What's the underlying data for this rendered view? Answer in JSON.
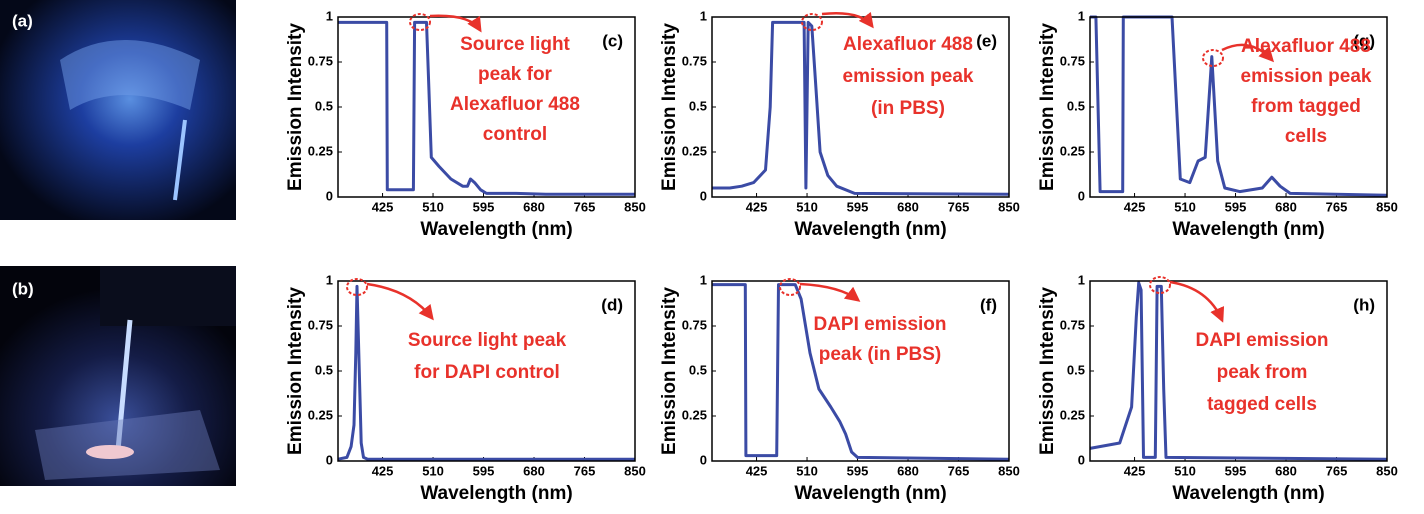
{
  "photos": [
    {
      "label": "(a)"
    },
    {
      "label": "(b)"
    }
  ],
  "chart_data": [
    {
      "type": "line",
      "panel_label": "(c)",
      "annotation": [
        "Source light",
        "peak for",
        "Alexafluor 488",
        "control"
      ],
      "xlabel": "Wavelength (nm)",
      "ylabel": "Emission Intensity",
      "xlim": [
        350,
        850
      ],
      "ylim": [
        0,
        1
      ],
      "xticks": [
        425,
        510,
        595,
        680,
        765,
        850
      ],
      "yticks": [
        0,
        0.25,
        0.5,
        0.75,
        1
      ],
      "series": [
        {
          "color": "#3b4ba5",
          "x": [
            350,
            432,
            433,
            477,
            479,
            499,
            503,
            507,
            520,
            540,
            560,
            568,
            573,
            580,
            590,
            600,
            650,
            700,
            850
          ],
          "values": [
            0.97,
            0.97,
            0.04,
            0.04,
            0.97,
            0.97,
            0.6,
            0.22,
            0.17,
            0.1,
            0.06,
            0.06,
            0.1,
            0.08,
            0.04,
            0.02,
            0.02,
            0.015,
            0.015
          ]
        }
      ]
    },
    {
      "type": "line",
      "panel_label": "(e)",
      "annotation": [
        "Alexafluor 488",
        "emission peak",
        "(in PBS)"
      ],
      "xlabel": "Wavelength (nm)",
      "ylabel": "Emission Intensity",
      "xlim": [
        350,
        850
      ],
      "ylim": [
        0,
        1
      ],
      "xticks": [
        425,
        510,
        595,
        680,
        765,
        850
      ],
      "yticks": [
        0,
        0.25,
        0.5,
        0.75,
        1
      ],
      "series": [
        {
          "color": "#3b4ba5",
          "x": [
            350,
            380,
            400,
            420,
            440,
            448,
            452,
            500,
            505,
            508,
            512,
            518,
            525,
            532,
            545,
            560,
            590,
            850
          ],
          "values": [
            0.05,
            0.05,
            0.06,
            0.08,
            0.15,
            0.5,
            0.97,
            0.97,
            0.97,
            0.05,
            0.97,
            0.95,
            0.6,
            0.25,
            0.12,
            0.06,
            0.02,
            0.015
          ]
        }
      ]
    },
    {
      "type": "line",
      "panel_label": "(g)",
      "annotation": [
        "Alexafluor 488",
        "emission peak",
        "from tagged",
        "cells"
      ],
      "xlabel": "Wavelength (nm)",
      "ylabel": "Emission Intensity",
      "xlim": [
        350,
        850
      ],
      "ylim": [
        0,
        1
      ],
      "xticks": [
        425,
        510,
        595,
        680,
        765,
        850
      ],
      "yticks": [
        0,
        0.25,
        0.5,
        0.75,
        1
      ],
      "series": [
        {
          "color": "#3b4ba5",
          "x": [
            350,
            360,
            367,
            405,
            406,
            488,
            502,
            518,
            532,
            544,
            555,
            565,
            577,
            602,
            640,
            656,
            670,
            687,
            850
          ],
          "values": [
            1,
            1,
            0.03,
            0.03,
            1,
            1,
            0.1,
            0.08,
            0.2,
            0.22,
            0.78,
            0.2,
            0.05,
            0.03,
            0.05,
            0.11,
            0.06,
            0.02,
            0.01
          ]
        }
      ]
    },
    {
      "type": "line",
      "panel_label": "(d)",
      "annotation": [
        "Source light peak",
        "for DAPI control"
      ],
      "xlabel": "Wavelength (nm)",
      "ylabel": "Emission Intensity",
      "xlim": [
        350,
        850
      ],
      "ylim": [
        0,
        1
      ],
      "xticks": [
        425,
        510,
        595,
        680,
        765,
        850
      ],
      "yticks": [
        0,
        0.25,
        0.5,
        0.75,
        1
      ],
      "series": [
        {
          "color": "#3b4ba5",
          "x": [
            350,
            365,
            372,
            377,
            380,
            382,
            385,
            389,
            393,
            400,
            850
          ],
          "values": [
            0.01,
            0.02,
            0.08,
            0.2,
            0.6,
            0.97,
            0.6,
            0.1,
            0.02,
            0.01,
            0.01
          ]
        }
      ]
    },
    {
      "type": "line",
      "panel_label": "(f)",
      "annotation": [
        "DAPI emission",
        "peak (in PBS)"
      ],
      "xlabel": "Wavelength (nm)",
      "ylabel": "Emission Intensity",
      "xlim": [
        350,
        850
      ],
      "ylim": [
        0,
        1
      ],
      "xticks": [
        425,
        510,
        595,
        680,
        765,
        850
      ],
      "yticks": [
        0,
        0.25,
        0.5,
        0.75,
        1
      ],
      "series": [
        {
          "color": "#3b4ba5",
          "x": [
            350,
            406,
            407,
            459,
            462,
            490,
            500,
            515,
            530,
            550,
            565,
            575,
            585,
            595,
            850
          ],
          "values": [
            0.98,
            0.98,
            0.03,
            0.03,
            0.98,
            0.98,
            0.9,
            0.6,
            0.4,
            0.3,
            0.22,
            0.15,
            0.05,
            0.02,
            0.01
          ]
        }
      ]
    },
    {
      "type": "line",
      "panel_label": "(h)",
      "annotation": [
        "DAPI emission",
        "peak from",
        "tagged cells"
      ],
      "xlabel": "Wavelength (nm)",
      "ylabel": "Emission Intensity",
      "xlim": [
        350,
        850
      ],
      "ylim": [
        0,
        1
      ],
      "xticks": [
        425,
        510,
        595,
        680,
        765,
        850
      ],
      "yticks": [
        0,
        0.25,
        0.5,
        0.75,
        1
      ],
      "series": [
        {
          "color": "#3b4ba5",
          "x": [
            350,
            400,
            420,
            428,
            432,
            436,
            440,
            460,
            463,
            470,
            474,
            478,
            850
          ],
          "values": [
            0.07,
            0.1,
            0.3,
            0.8,
            0.99,
            0.95,
            0.02,
            0.02,
            0.97,
            0.97,
            0.4,
            0.02,
            0.01
          ]
        }
      ]
    }
  ]
}
